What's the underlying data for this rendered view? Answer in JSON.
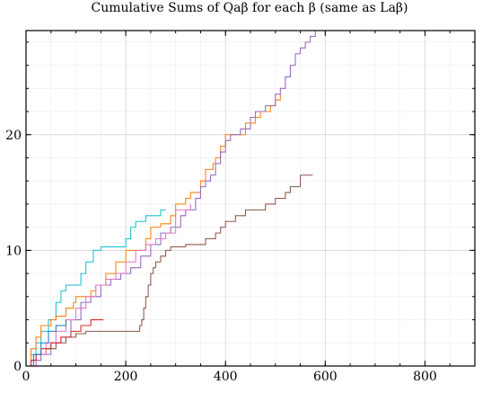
{
  "chart_data": {
    "type": "line",
    "title": "Cumulative Sums of Qaβ for each β (same as Laβ)",
    "xlabel": "",
    "ylabel": "",
    "xlim": [
      0,
      900
    ],
    "ylim": [
      0,
      29
    ],
    "x_ticks": [
      0,
      200,
      400,
      600,
      800
    ],
    "y_ticks": [
      0,
      10,
      20
    ],
    "x_tick_labels": [
      "0",
      "200",
      "400",
      "600",
      "800"
    ],
    "y_tick_labels": [
      "0",
      "10",
      "20"
    ],
    "grid": true,
    "legend": "none",
    "series": [
      {
        "color": "#17becf",
        "points": [
          [
            0,
            0
          ],
          [
            10,
            1
          ],
          [
            20,
            2
          ],
          [
            30,
            3
          ],
          [
            45,
            4
          ],
          [
            60,
            5.5
          ],
          [
            70,
            6.5
          ],
          [
            80,
            7
          ],
          [
            100,
            7
          ],
          [
            110,
            8
          ],
          [
            120,
            9
          ],
          [
            135,
            10
          ],
          [
            150,
            10.3
          ],
          [
            180,
            10.3
          ],
          [
            200,
            11
          ],
          [
            210,
            12
          ],
          [
            220,
            12.5
          ],
          [
            240,
            13
          ],
          [
            260,
            13
          ],
          [
            270,
            13.5
          ],
          [
            280,
            13.5
          ]
        ]
      },
      {
        "color": "#ff7f0e",
        "points": [
          [
            0,
            0
          ],
          [
            10,
            1.5
          ],
          [
            20,
            2.5
          ],
          [
            30,
            3.5
          ],
          [
            50,
            4
          ],
          [
            60,
            4.3
          ],
          [
            80,
            5
          ],
          [
            95,
            5.5
          ],
          [
            100,
            6
          ],
          [
            130,
            6.5
          ],
          [
            140,
            7
          ],
          [
            160,
            8
          ],
          [
            180,
            9
          ],
          [
            200,
            10
          ],
          [
            220,
            10
          ],
          [
            240,
            11
          ],
          [
            250,
            12
          ],
          [
            270,
            12.3
          ],
          [
            290,
            13
          ],
          [
            300,
            14
          ],
          [
            320,
            14.5
          ],
          [
            330,
            15
          ],
          [
            350,
            16
          ],
          [
            360,
            17
          ],
          [
            375,
            17.5
          ],
          [
            380,
            18
          ],
          [
            390,
            19
          ],
          [
            400,
            20
          ],
          [
            430,
            20
          ],
          [
            440,
            21
          ],
          [
            460,
            21.5
          ],
          [
            470,
            22
          ],
          [
            480,
            22
          ],
          [
            490,
            22.5
          ],
          [
            500,
            23
          ],
          [
            510,
            23.5
          ]
        ]
      },
      {
        "color": "#8c564b",
        "points": [
          [
            0,
            0
          ],
          [
            20,
            1
          ],
          [
            40,
            1.5
          ],
          [
            60,
            2
          ],
          [
            80,
            2.5
          ],
          [
            100,
            2.8
          ],
          [
            120,
            3
          ],
          [
            160,
            3
          ],
          [
            220,
            3
          ],
          [
            228,
            3.5
          ],
          [
            232,
            4
          ],
          [
            236,
            5
          ],
          [
            240,
            6
          ],
          [
            245,
            7
          ],
          [
            250,
            8
          ],
          [
            255,
            8.5
          ],
          [
            260,
            9
          ],
          [
            270,
            9.5
          ],
          [
            280,
            10
          ],
          [
            290,
            10.3
          ],
          [
            320,
            10.5
          ],
          [
            350,
            10.5
          ],
          [
            360,
            11
          ],
          [
            380,
            11.5
          ],
          [
            390,
            12
          ],
          [
            400,
            12.5
          ],
          [
            420,
            13
          ],
          [
            440,
            13.5
          ],
          [
            460,
            13.5
          ],
          [
            480,
            14
          ],
          [
            500,
            14.5
          ],
          [
            520,
            15
          ],
          [
            530,
            15.5
          ],
          [
            550,
            16.5
          ],
          [
            575,
            16.5
          ]
        ]
      },
      {
        "color": "#9467bd",
        "points": [
          [
            0,
            0
          ],
          [
            10,
            0.5
          ],
          [
            30,
            1
          ],
          [
            50,
            2
          ],
          [
            70,
            2.5
          ],
          [
            90,
            4
          ],
          [
            110,
            5.5
          ],
          [
            130,
            6
          ],
          [
            150,
            7
          ],
          [
            170,
            7.5
          ],
          [
            190,
            8
          ],
          [
            210,
            8.5
          ],
          [
            230,
            9.5
          ],
          [
            250,
            10.5
          ],
          [
            270,
            11.5
          ],
          [
            290,
            12
          ],
          [
            310,
            13
          ],
          [
            320,
            13.5
          ],
          [
            340,
            14.5
          ],
          [
            350,
            15.5
          ],
          [
            360,
            16
          ],
          [
            370,
            16.5
          ],
          [
            380,
            17.5
          ],
          [
            390,
            18.5
          ],
          [
            400,
            19.5
          ],
          [
            410,
            20
          ],
          [
            430,
            20.5
          ],
          [
            440,
            20.5
          ],
          [
            450,
            21.5
          ],
          [
            460,
            22
          ],
          [
            480,
            22.5
          ],
          [
            500,
            23.5
          ],
          [
            510,
            24
          ],
          [
            520,
            25
          ],
          [
            530,
            26
          ],
          [
            540,
            27
          ],
          [
            550,
            27.5
          ],
          [
            560,
            28
          ],
          [
            570,
            28.5
          ],
          [
            580,
            29
          ],
          [
            600,
            29
          ]
        ]
      },
      {
        "color": "#e377c2",
        "points": [
          [
            0,
            0
          ],
          [
            20,
            1
          ],
          [
            40,
            2
          ],
          [
            60,
            3
          ],
          [
            80,
            4
          ],
          [
            100,
            5
          ],
          [
            120,
            6
          ],
          [
            140,
            7
          ],
          [
            160,
            7.5
          ],
          [
            180,
            8
          ],
          [
            200,
            9
          ],
          [
            220,
            10
          ],
          [
            240,
            10.5
          ],
          [
            260,
            11
          ],
          [
            280,
            11.5
          ],
          [
            300,
            13.5
          ],
          [
            320,
            13.5
          ],
          [
            330,
            14
          ]
        ]
      },
      {
        "color": "#d62728",
        "points": [
          [
            0,
            0
          ],
          [
            10,
            0.5
          ],
          [
            20,
            1
          ],
          [
            30,
            1.5
          ],
          [
            50,
            2
          ],
          [
            70,
            2.5
          ],
          [
            90,
            3
          ],
          [
            110,
            3.5
          ],
          [
            130,
            4
          ],
          [
            155,
            4
          ]
        ]
      },
      {
        "color": "#1f77b4",
        "points": [
          [
            0,
            0
          ],
          [
            15,
            1
          ],
          [
            30,
            2
          ],
          [
            45,
            3
          ],
          [
            60,
            3.5
          ],
          [
            80,
            4
          ]
        ]
      },
      {
        "color": "#bcbd22",
        "points": [
          [
            0,
            0
          ],
          [
            600,
            0
          ],
          [
            900,
            0
          ]
        ]
      }
    ]
  }
}
